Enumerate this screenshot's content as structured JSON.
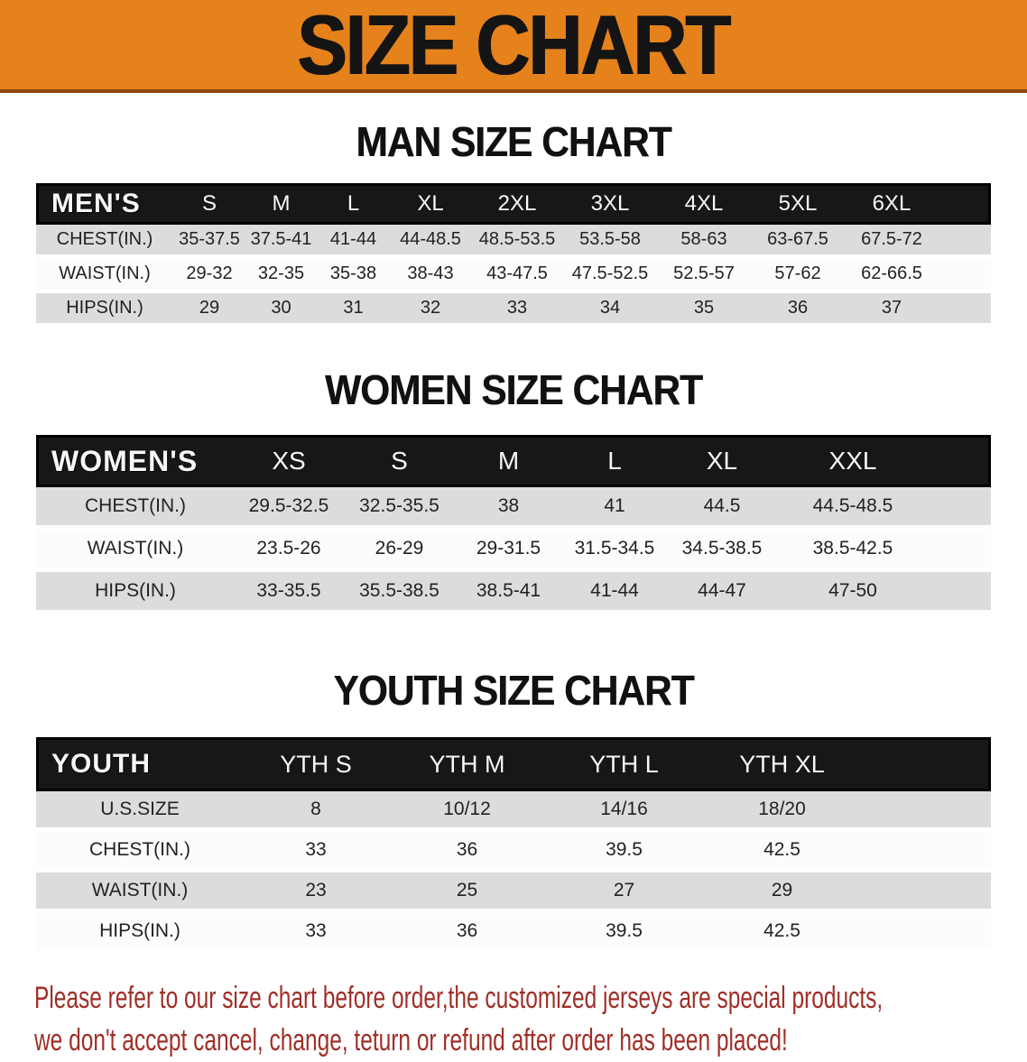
{
  "banner": {
    "title": "SIZE CHART"
  },
  "sections": [
    {
      "heading": "MAN SIZE CHART",
      "header": {
        "label": "MEN'S",
        "sizes": [
          "S",
          "M",
          "L",
          "XL",
          "2XL",
          "3XL",
          "4XL",
          "5XL",
          "6XL"
        ]
      },
      "rows": [
        {
          "label": "CHEST(IN.)",
          "values": [
            "35-37.5",
            "37.5-41",
            "41-44",
            "44-48.5",
            "48.5-53.5",
            "53.5-58",
            "58-63",
            "63-67.5",
            "67.5-72"
          ]
        },
        {
          "label": "WAIST(IN.)",
          "values": [
            "29-32",
            "32-35",
            "35-38",
            "38-43",
            "43-47.5",
            "47.5-52.5",
            "52.5-57",
            "57-62",
            "62-66.5"
          ]
        },
        {
          "label": "HIPS(IN.)",
          "values": [
            "29",
            "30",
            "31",
            "32",
            "33",
            "34",
            "35",
            "36",
            "37"
          ]
        }
      ]
    },
    {
      "heading": "WOMEN SIZE CHART",
      "header": {
        "label": "WOMEN'S",
        "sizes": [
          "XS",
          "S",
          "M",
          "L",
          "XL",
          "XXL"
        ]
      },
      "rows": [
        {
          "label": "CHEST(IN.)",
          "values": [
            "29.5-32.5",
            "32.5-35.5",
            "38",
            "41",
            "44.5",
            "44.5-48.5"
          ]
        },
        {
          "label": "WAIST(IN.)",
          "values": [
            "23.5-26",
            "26-29",
            "29-31.5",
            "31.5-34.5",
            "34.5-38.5",
            "38.5-42.5"
          ]
        },
        {
          "label": "HIPS(IN.)",
          "values": [
            "33-35.5",
            "35.5-38.5",
            "38.5-41",
            "41-44",
            "44-47",
            "47-50"
          ]
        }
      ]
    },
    {
      "heading": "YOUTH SIZE CHART",
      "header": {
        "label": "YOUTH",
        "sizes": [
          "YTH S",
          "YTH M",
          "YTH L",
          "YTH XL"
        ]
      },
      "rows": [
        {
          "label": "U.S.SIZE",
          "values": [
            "8",
            "10/12",
            "14/16",
            "18/20"
          ]
        },
        {
          "label": "CHEST(IN.)",
          "values": [
            "33",
            "36",
            "39.5",
            "42.5"
          ]
        },
        {
          "label": "WAIST(IN.)",
          "values": [
            "23",
            "25",
            "27",
            "29"
          ]
        },
        {
          "label": "HIPS(IN.)",
          "values": [
            "33",
            "36",
            "39.5",
            "42.5"
          ]
        }
      ]
    }
  ],
  "footer": {
    "line1": "Please refer to our size chart before order,the customized jerseys are special products,",
    "line2": "we don't accept cancel, change, teturn or refund after order has been placed!"
  },
  "colors": {
    "banner_bg": "#E5821C",
    "banner_border": "#8A4A0E",
    "header_bar": "#171717",
    "row_gray": "#DCDCDC",
    "footer_red": "#9F2F28"
  }
}
